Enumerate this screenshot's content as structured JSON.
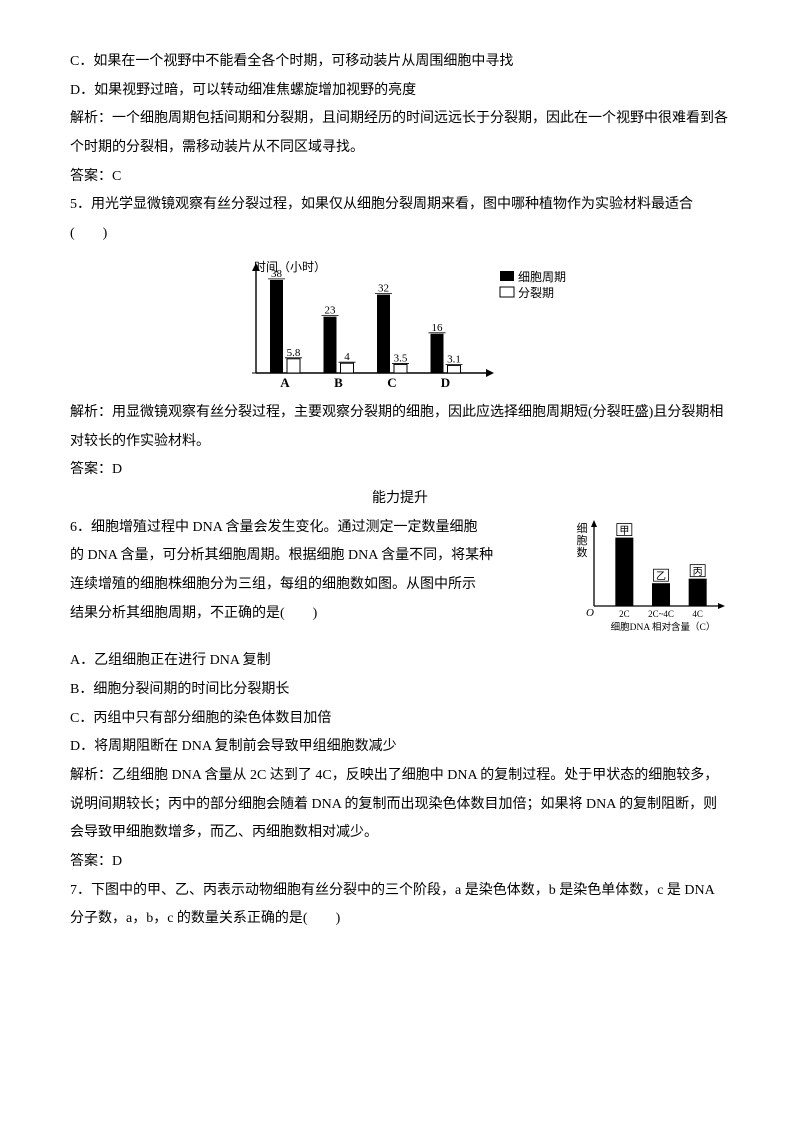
{
  "q4": {
    "optC": "C．如果在一个视野中不能看全各个时期，可移动装片从周围细胞中寻找",
    "optD": "D．如果视野过暗，可以转动细准焦螺旋增加视野的亮度",
    "jiexi": "解析：一个细胞周期包括间期和分裂期，且间期经历的时间远远长于分裂期，因此在一个视野中很难看到各个时期的分裂相，需移动装片从不同区域寻找。",
    "answer": "答案：C"
  },
  "q5": {
    "stem": "5．用光学显微镜观察有丝分裂过程，如果仅从细胞分裂周期来看，图中哪种植物作为实验材料最适合(　　)",
    "chart": {
      "ylabel": "时间（小时）",
      "legend": {
        "cycle": "细胞周期",
        "division": "分裂期"
      },
      "categories": [
        "A",
        "B",
        "C",
        "D"
      ],
      "cycle_values": [
        38,
        23,
        32,
        16
      ],
      "div_values": [
        5.8,
        4,
        3.5,
        3.1
      ],
      "cycle_labels": [
        "38",
        "23",
        "32",
        "16"
      ],
      "div_labels": [
        "5.8",
        "4",
        "3.5",
        "3.1"
      ],
      "colors": {
        "cycle": "#000000",
        "division": "#ffffff",
        "border": "#000000",
        "text": "#000000"
      },
      "ymax": 40
    },
    "jiexi": "解析：用显微镜观察有丝分裂过程，主要观察分裂期的细胞，因此应选择细胞周期短(分裂旺盛)且分裂期相对较长的作实验材料。",
    "answer": "答案：D"
  },
  "section": "能力提升",
  "q6": {
    "stem1": "6．细胞增殖过程中 DNA 含量会发生变化。通过测定一定数量细胞",
    "stem2": "的 DNA 含量，可分析其细胞周期。根据细胞 DNA 含量不同，将某种",
    "stem3": "连续增殖的细胞株细胞分为三组，每组的细胞数如图。从图中所示",
    "stem4": "结果分析其细胞周期，不正确的是(　　)",
    "optA": "A．乙组细胞正在进行 DNA 复制",
    "optB": "B．细胞分裂间期的时间比分裂期长",
    "optC": "C．丙组中只有部分细胞的染色体数目加倍",
    "optD": "D．将周期阻断在 DNA 复制前会导致甲组细胞数减少",
    "jiexi": "解析：乙组细胞 DNA 含量从 2C 达到了 4C，反映出了细胞中 DNA 的复制过程。处于甲状态的细胞较多，说明间期较长；丙中的部分细胞会随着 DNA 的复制而出现染色体数目加倍；如果将 DNA 的复制阻断，则会导致甲细胞数增多，而乙、丙细胞数相对减少。",
    "answer": "答案：D",
    "chart": {
      "ylabel_v": "细胞数",
      "categories": [
        "2C",
        "2C~4C",
        "4C"
      ],
      "bar_labels": [
        "甲",
        "乙",
        "丙"
      ],
      "values": [
        90,
        30,
        36
      ],
      "xlabel": "细胞DNA 相对含量（C）",
      "colors": {
        "bar": "#000000",
        "axis": "#000000",
        "text": "#000000"
      },
      "origin": "O",
      "ymax": 100
    }
  },
  "q7": {
    "stem": "7．下图中的甲、乙、丙表示动物细胞有丝分裂中的三个阶段，a 是染色体数，b 是染色单体数，c 是 DNA 分子数，a，b，c 的数量关系正确的是(　　)"
  }
}
